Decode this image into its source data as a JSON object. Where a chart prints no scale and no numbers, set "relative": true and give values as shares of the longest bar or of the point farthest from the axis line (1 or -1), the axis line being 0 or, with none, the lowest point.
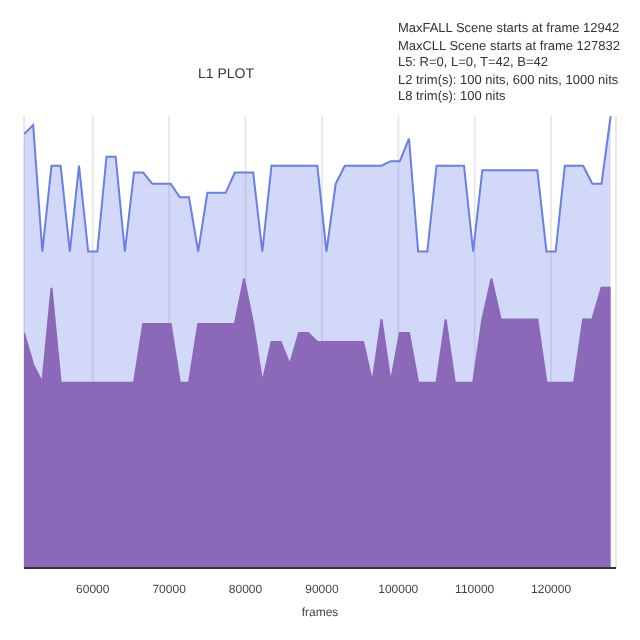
{
  "chart_data": {
    "type": "area",
    "title": "L1 PLOT",
    "xlabel": "frames",
    "relative": true,
    "grid": "x",
    "legend": false,
    "line_style": "solid",
    "annotations": [
      "MaxFALL Scene starts at frame 12942",
      "MaxCLL Scene starts at frame 127832",
      "L5: R=0, L=0, T=42, B=42",
      "L2 trim(s): 100 nits, 600 nits, 1000 nits",
      "L8 trim(s): 100 nits"
    ],
    "x": [
      51000,
      52200,
      53400,
      54600,
      55800,
      57000,
      58200,
      59400,
      60600,
      61800,
      63000,
      64200,
      65400,
      66600,
      67800,
      69000,
      70200,
      71400,
      72600,
      73800,
      75000,
      76200,
      77400,
      78600,
      79800,
      81000,
      82200,
      83400,
      84600,
      85800,
      87000,
      88200,
      89400,
      90600,
      91800,
      93000,
      94200,
      95400,
      96600,
      97800,
      99000,
      100200,
      101400,
      102600,
      103800,
      105000,
      106200,
      107400,
      108600,
      109800,
      111000,
      112200,
      113400,
      114600,
      115800,
      117000,
      118200,
      119400,
      120600,
      121800,
      123000,
      124200,
      125400,
      126600,
      127800
    ],
    "xlim": [
      51000,
      128500
    ],
    "xticks": [
      60000,
      70000,
      80000,
      90000,
      100000,
      110000,
      120000
    ],
    "series": [
      {
        "color": "#6a7fe6",
        "values": [
          0.96,
          0.98,
          0.7,
          0.89,
          0.89,
          0.7,
          0.89,
          0.7,
          0.7,
          0.91,
          0.91,
          0.7,
          0.875,
          0.875,
          0.85,
          0.85,
          0.85,
          0.82,
          0.82,
          0.7,
          0.83,
          0.83,
          0.83,
          0.875,
          0.875,
          0.875,
          0.7,
          0.89,
          0.89,
          0.89,
          0.89,
          0.89,
          0.89,
          0.7,
          0.85,
          0.89,
          0.89,
          0.89,
          0.89,
          0.89,
          0.9,
          0.9,
          0.95,
          0.7,
          0.7,
          0.89,
          0.89,
          0.89,
          0.89,
          0.7,
          0.88,
          0.88,
          0.88,
          0.88,
          0.88,
          0.88,
          0.88,
          0.7,
          0.7,
          0.89,
          0.89,
          0.89,
          0.85,
          0.85,
          1.0
        ]
      },
      {
        "color": "#8b69b8",
        "values": [
          0.52,
          0.45,
          0.41,
          0.62,
          0.41,
          0.41,
          0.41,
          0.41,
          0.41,
          0.41,
          0.41,
          0.41,
          0.41,
          0.54,
          0.54,
          0.54,
          0.54,
          0.41,
          0.41,
          0.54,
          0.54,
          0.54,
          0.54,
          0.54,
          0.64,
          0.54,
          0.41,
          0.5,
          0.5,
          0.45,
          0.52,
          0.52,
          0.5,
          0.5,
          0.5,
          0.5,
          0.5,
          0.5,
          0.41,
          0.55,
          0.41,
          0.52,
          0.52,
          0.41,
          0.41,
          0.41,
          0.55,
          0.41,
          0.41,
          0.41,
          0.55,
          0.64,
          0.55,
          0.55,
          0.55,
          0.55,
          0.55,
          0.41,
          0.41,
          0.41,
          0.41,
          0.55,
          0.55,
          0.62,
          0.62
        ]
      }
    ]
  }
}
